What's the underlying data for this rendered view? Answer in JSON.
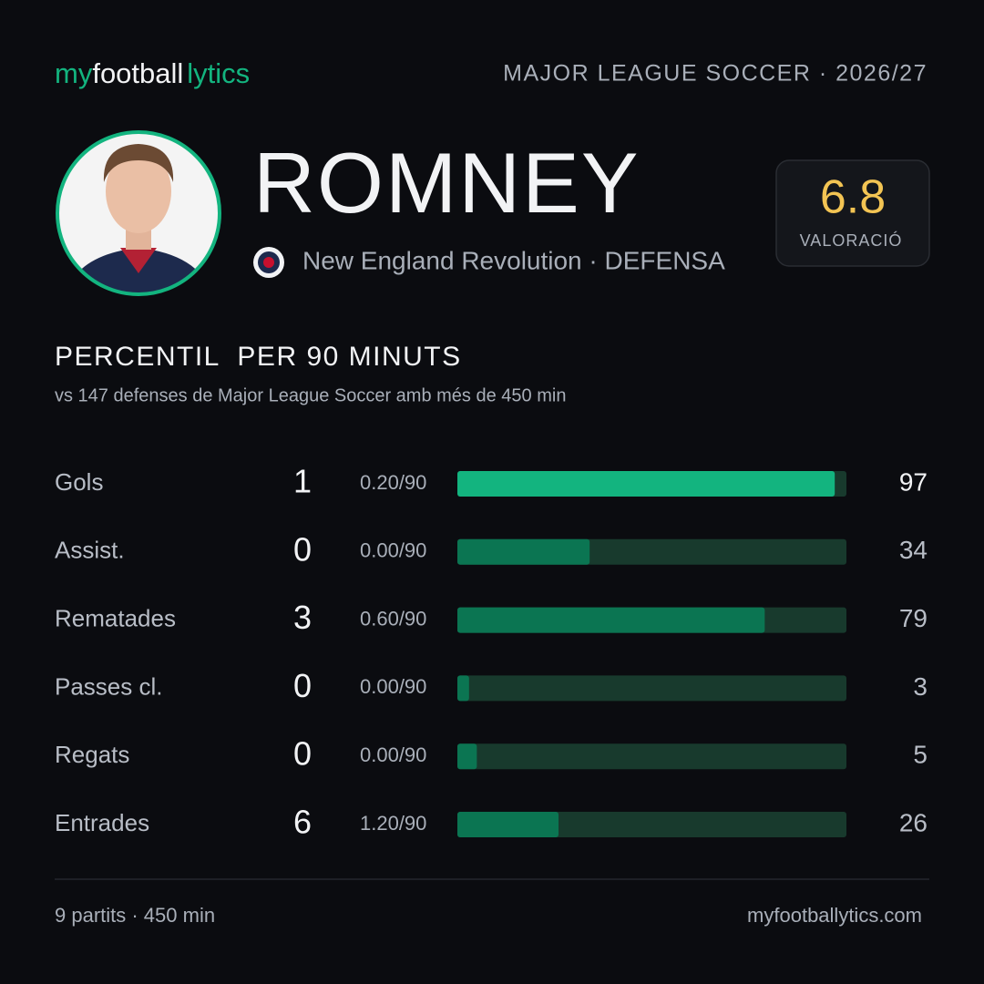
{
  "header": {
    "brand": [
      "my",
      "football",
      "lytics"
    ],
    "league": "MAJOR LEAGUE SOCCER · 2026/27"
  },
  "player": {
    "name": "ROMNEY",
    "team_line": "New England Revolution · DEFENSA",
    "rating": 6.8,
    "rating_label": "VALORACIÓ"
  },
  "section": {
    "title": "PERCENTIL  PER 90 MINUTS",
    "subtitle": "vs 147 defenses de Major League Soccer amb més de 450 min"
  },
  "stats": {
    "percentile_range": [
      0,
      100
    ],
    "rows": [
      {
        "label": "Gols",
        "total": 1,
        "per90": "0.20/90",
        "percentile": 97,
        "color": "#13b47f"
      },
      {
        "label": "Assist.",
        "total": 0,
        "per90": "0.00/90",
        "percentile": 34,
        "color": "#0b7552"
      },
      {
        "label": "Rematades",
        "total": 3,
        "per90": "0.60/90",
        "percentile": 79,
        "color": "#0b7552"
      },
      {
        "label": "Passes cl.",
        "total": 0,
        "per90": "0.00/90",
        "percentile": 3,
        "color": "#0b7552"
      },
      {
        "label": "Regats",
        "total": 0,
        "per90": "0.00/90",
        "percentile": 5,
        "color": "#0b7552"
      },
      {
        "label": "Entrades",
        "total": 6,
        "per90": "1.20/90",
        "percentile": 26,
        "color": "#0b7552"
      }
    ]
  },
  "footer": {
    "summary": "9 partits · 450 min",
    "site": "myfootballytics.com"
  }
}
